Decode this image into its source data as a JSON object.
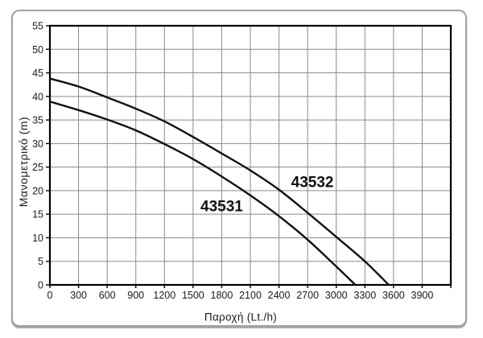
{
  "chart_data": {
    "type": "line",
    "title": "",
    "xlabel": "Παροχή (Lt./h)",
    "ylabel": "Μανομετρικό (m)",
    "xlim": [
      0,
      4200
    ],
    "ylim": [
      0,
      55
    ],
    "x_tick_step": 300,
    "y_tick_step": 5,
    "x_tick_labels": [
      "0",
      "300",
      "600",
      "900",
      "1200",
      "1500",
      "1800",
      "2100",
      "2400",
      "2700",
      "3000",
      "3300",
      "3600",
      "3900"
    ],
    "y_tick_labels": [
      "0",
      "5",
      "10",
      "15",
      "20",
      "25",
      "30",
      "35",
      "40",
      "45",
      "50",
      "55"
    ],
    "grid": true,
    "legend_position": "inline-labels",
    "colors": {
      "grid": "#8a8a8a",
      "axis": "#000000",
      "curve": "#111111",
      "card_border": "#a2a2a2",
      "background": "#ffffff",
      "text": "#1a1a1a"
    },
    "series": [
      {
        "name": "43531",
        "label_x": 1800,
        "label_y": 16.7,
        "points": [
          [
            0,
            38.9
          ],
          [
            300,
            37.1
          ],
          [
            600,
            35.1
          ],
          [
            900,
            32.8
          ],
          [
            1200,
            29.9
          ],
          [
            1500,
            26.7
          ],
          [
            1800,
            23.0
          ],
          [
            2100,
            19.0
          ],
          [
            2400,
            14.6
          ],
          [
            2700,
            9.6
          ],
          [
            3000,
            3.9
          ],
          [
            3200,
            0
          ]
        ]
      },
      {
        "name": "43532",
        "label_x": 2750,
        "label_y": 21.9,
        "points": [
          [
            0,
            43.8
          ],
          [
            300,
            42.1
          ],
          [
            600,
            39.8
          ],
          [
            900,
            37.4
          ],
          [
            1200,
            34.7
          ],
          [
            1500,
            31.4
          ],
          [
            1800,
            27.9
          ],
          [
            2100,
            24.3
          ],
          [
            2400,
            20.2
          ],
          [
            2700,
            15.3
          ],
          [
            3000,
            10.2
          ],
          [
            3300,
            5.0
          ],
          [
            3550,
            0
          ]
        ]
      }
    ]
  }
}
